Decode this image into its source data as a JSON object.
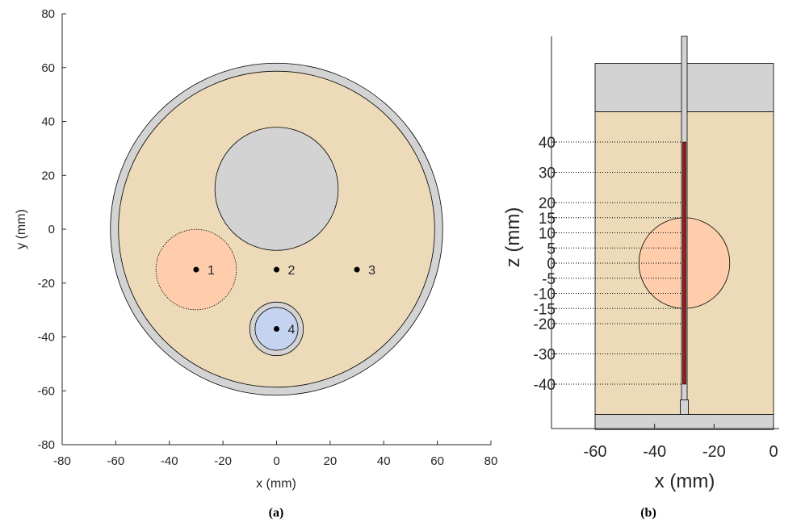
{
  "colors": {
    "beige": "#ecdab9",
    "gray": "#d3d3d3",
    "peach": "#ffcdac",
    "blue": "#c4d3ef",
    "probe_red": "#a41717",
    "axis": "#262626"
  },
  "panel_a": {
    "caption": "(a)",
    "xlabel": "x (mm)",
    "ylabel": "y (mm)",
    "xticks": [
      "-80",
      "-60",
      "-40",
      "-20",
      "0",
      "20",
      "40",
      "60",
      "80"
    ],
    "yticks": [
      "80",
      "60",
      "40",
      "20",
      "0",
      "-20",
      "-40",
      "-60",
      "-80"
    ],
    "xlim": [
      -80,
      80
    ],
    "ylim": [
      -80,
      80
    ],
    "outer_ring": {
      "cx": 0,
      "cy": 0,
      "r": 62
    },
    "inner_disk": {
      "cx": 0,
      "cy": 0,
      "r": 59
    },
    "gray_insert": {
      "cx": 0,
      "cy": 15,
      "r": 23
    },
    "peach_insert": {
      "cx": -30,
      "cy": -15,
      "r": 15
    },
    "blue_ring": {
      "cx": 0,
      "cy": -37,
      "r": 10
    },
    "blue_disk": {
      "cx": 0,
      "cy": -37,
      "r": 8
    },
    "points": [
      {
        "label": "1",
        "x": -30,
        "y": -15
      },
      {
        "label": "2",
        "x": 0,
        "y": -15
      },
      {
        "label": "3",
        "x": 30,
        "y": -15
      },
      {
        "label": "4",
        "x": 0,
        "y": -37
      }
    ]
  },
  "panel_b": {
    "caption": "(b)",
    "xlabel": "x (mm)",
    "ylabel": "z (mm)",
    "xticks": [
      "-60",
      "-40",
      "-20",
      "0"
    ],
    "zticks": [
      "40",
      "30",
      "20",
      "15",
      "10",
      "5",
      "0",
      "-5",
      "-10",
      "-15",
      "-20",
      "-30",
      "-40"
    ],
    "xlim": [
      -60,
      0
    ],
    "block_top": 66,
    "block_beige_top": 50,
    "block_beige_bottom": -50,
    "block_bottom": -55,
    "sphere": {
      "cx": -30,
      "cz": 0,
      "r": 15
    },
    "probe_x": -30,
    "probe_red_range": [
      -40,
      40
    ]
  }
}
